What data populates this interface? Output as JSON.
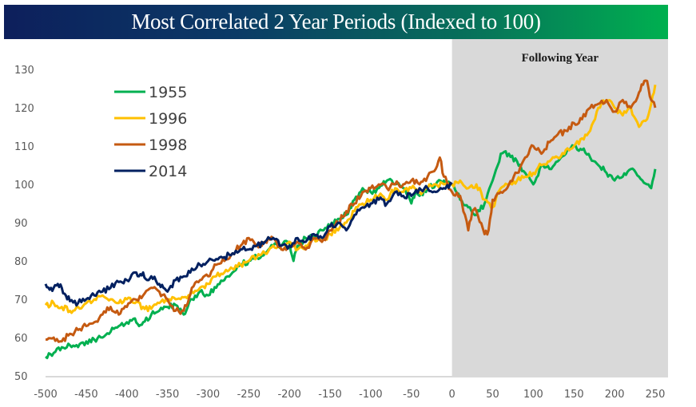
{
  "chart_data": {
    "type": "line",
    "title": "Most Correlated 2 Year Periods (Indexed to 100)",
    "xlabel": "",
    "ylabel": "",
    "xlim": [
      -500,
      250
    ],
    "ylim": [
      50,
      130
    ],
    "x_ticks": [
      -500,
      -450,
      -400,
      -350,
      -300,
      -250,
      -200,
      -150,
      -100,
      -50,
      0,
      50,
      100,
      150,
      200,
      250
    ],
    "y_ticks": [
      50,
      60,
      70,
      80,
      90,
      100,
      110,
      120,
      130
    ],
    "grid": false,
    "legend_position": "top-left",
    "shaded_region": {
      "x_from": 0,
      "x_to": 260,
      "label": "Following Year",
      "color": "#d9d9d9"
    },
    "series": [
      {
        "name": "1955",
        "color": "#00b050",
        "x": [
          -500,
          -490,
          -480,
          -470,
          -460,
          -450,
          -440,
          -430,
          -420,
          -410,
          -400,
          -390,
          -385,
          -380,
          -370,
          -360,
          -350,
          -340,
          -330,
          -325,
          -320,
          -310,
          -300,
          -290,
          -280,
          -270,
          -260,
          -250,
          -240,
          -230,
          -220,
          -210,
          -200,
          -195,
          -190,
          -180,
          -170,
          -160,
          -150,
          -140,
          -130,
          -120,
          -110,
          -100,
          -90,
          -80,
          -70,
          -60,
          -50,
          -45,
          -40,
          -30,
          -20,
          -10,
          0,
          10,
          20,
          30,
          40,
          50,
          60,
          70,
          80,
          90,
          100,
          110,
          120,
          130,
          140,
          150,
          160,
          170,
          180,
          190,
          200,
          210,
          220,
          230,
          240,
          245,
          250
        ],
        "values": [
          55,
          56,
          57.5,
          58,
          57.5,
          59,
          59.5,
          60,
          61.5,
          63,
          64,
          65,
          63,
          64,
          66,
          67,
          68,
          68.5,
          66,
          68,
          70,
          72,
          71,
          73,
          75,
          77,
          79,
          80,
          81,
          82,
          84,
          84,
          85,
          80,
          84,
          86,
          86.5,
          88,
          89,
          91,
          92,
          96,
          99,
          98,
          99,
          101,
          100,
          99,
          95,
          98,
          97,
          99,
          100,
          101,
          100,
          96,
          94,
          92,
          95,
          101,
          108,
          108,
          106,
          103,
          100,
          105,
          104,
          106,
          108,
          110,
          109,
          107,
          105,
          103,
          101,
          102,
          104,
          102,
          100,
          99,
          104
        ]
      },
      {
        "name": "1996",
        "color": "#ffc000",
        "x": [
          -500,
          -490,
          -480,
          -470,
          -460,
          -450,
          -440,
          -430,
          -420,
          -410,
          -400,
          -390,
          -380,
          -370,
          -360,
          -350,
          -340,
          -330,
          -320,
          -310,
          -300,
          -290,
          -280,
          -270,
          -260,
          -250,
          -240,
          -230,
          -220,
          -210,
          -200,
          -190,
          -180,
          -170,
          -160,
          -150,
          -140,
          -130,
          -120,
          -110,
          -100,
          -90,
          -80,
          -70,
          -60,
          -50,
          -40,
          -30,
          -20,
          -10,
          0,
          10,
          20,
          30,
          40,
          50,
          60,
          70,
          80,
          90,
          100,
          110,
          120,
          130,
          140,
          150,
          160,
          170,
          180,
          190,
          200,
          210,
          220,
          230,
          240,
          245,
          250
        ],
        "values": [
          68.5,
          69,
          68,
          67,
          68,
          69,
          70,
          71,
          70,
          69,
          70,
          69,
          68,
          67.5,
          69,
          69.5,
          70,
          70.5,
          72,
          73,
          74,
          76,
          77,
          78,
          79,
          80,
          81,
          82,
          84,
          83,
          85,
          83,
          84,
          86,
          85,
          87,
          88,
          90,
          93,
          95,
          96,
          97,
          96,
          99,
          98,
          99,
          98,
          99,
          100,
          100,
          100,
          101,
          99,
          100,
          96,
          94,
          99,
          100,
          101,
          102,
          103,
          105,
          106,
          107,
          109,
          110,
          112,
          114,
          120,
          122,
          120,
          118,
          120,
          115,
          117,
          121,
          126
        ]
      },
      {
        "name": "1998",
        "color": "#c55a11",
        "x": [
          -500,
          -490,
          -480,
          -470,
          -460,
          -450,
          -440,
          -430,
          -420,
          -410,
          -400,
          -390,
          -380,
          -370,
          -360,
          -350,
          -340,
          -330,
          -325,
          -320,
          -310,
          -300,
          -290,
          -280,
          -270,
          -260,
          -250,
          -240,
          -230,
          -220,
          -210,
          -200,
          -190,
          -180,
          -170,
          -160,
          -150,
          -140,
          -130,
          -120,
          -110,
          -100,
          -90,
          -80,
          -70,
          -60,
          -50,
          -40,
          -30,
          -20,
          -15,
          -10,
          0,
          10,
          20,
          25,
          30,
          40,
          45,
          50,
          60,
          70,
          80,
          90,
          100,
          110,
          120,
          130,
          140,
          150,
          160,
          170,
          180,
          190,
          200,
          210,
          220,
          230,
          235,
          240,
          245,
          250
        ],
        "values": [
          59.5,
          60,
          59,
          61,
          62,
          63,
          64,
          66,
          68,
          66,
          68,
          70,
          71,
          73,
          72,
          70,
          67,
          67,
          69,
          73,
          75,
          76,
          79,
          80,
          82,
          84,
          86,
          84,
          85,
          86,
          83,
          84,
          85,
          83,
          86,
          85,
          88,
          90,
          93,
          95,
          98,
          99,
          100,
          99,
          100,
          100,
          101,
          100,
          102,
          104,
          107,
          102,
          98,
          97,
          88,
          93,
          93,
          87,
          88,
          96,
          98,
          100,
          103,
          107,
          110,
          108,
          111,
          113,
          114,
          116,
          117,
          120,
          121,
          122,
          119,
          122,
          120,
          124,
          126,
          127,
          122,
          120
        ]
      },
      {
        "name": "2014",
        "color": "#002060",
        "x": [
          -500,
          -495,
          -490,
          -485,
          -480,
          -475,
          -470,
          -460,
          -450,
          -440,
          -430,
          -420,
          -410,
          -400,
          -390,
          -385,
          -380,
          -375,
          -370,
          -360,
          -355,
          -350,
          -340,
          -330,
          -320,
          -310,
          -300,
          -290,
          -280,
          -270,
          -260,
          -250,
          -240,
          -230,
          -220,
          -210,
          -200,
          -190,
          -180,
          -170,
          -160,
          -150,
          -140,
          -130,
          -120,
          -110,
          -100,
          -90,
          -80,
          -70,
          -60,
          -50,
          -40,
          -30,
          -20,
          -10,
          0
        ],
        "values": [
          74,
          72.5,
          73,
          74,
          73,
          71,
          69.5,
          69,
          70,
          71,
          72,
          73,
          74.5,
          75,
          77,
          76,
          77,
          75,
          76,
          74,
          73,
          72,
          75,
          76,
          78,
          79,
          80,
          80.5,
          81,
          82,
          83,
          83,
          84,
          85,
          86,
          84,
          84,
          86,
          85,
          87,
          86,
          89,
          90,
          88,
          92,
          94,
          95,
          96,
          95,
          98,
          97,
          97,
          99,
          99,
          98,
          99,
          100
        ]
      }
    ]
  },
  "legend": {
    "items": [
      "1955",
      "1996",
      "1998",
      "2014"
    ]
  }
}
